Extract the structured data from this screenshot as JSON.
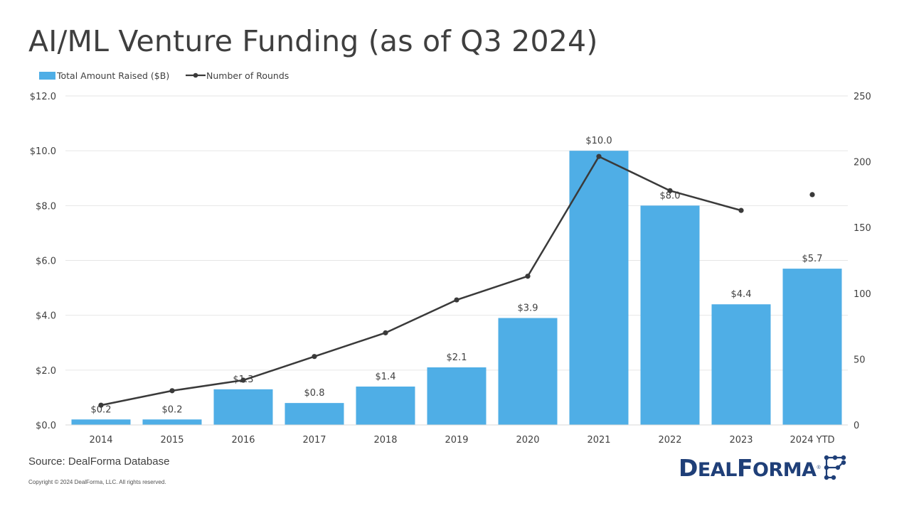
{
  "title": "AI/ML Venture Funding (as of Q3 2024)",
  "source": "Source: DealForma Database",
  "copyright": "Copyright © 2024 DealForma, LLC. All rights reserved.",
  "logo": {
    "text_first": "D",
    "text_rest": "EAL",
    "text_first2": "F",
    "text_rest2": "ORMA",
    "registered": "®"
  },
  "colors": {
    "bar": "#4faee6",
    "line": "#3a3a3a",
    "grid": "#e6e6e6",
    "logo": "#1f3f78"
  },
  "chart_data": {
    "type": "bar+line",
    "categories": [
      "2014",
      "2015",
      "2016",
      "2017",
      "2018",
      "2019",
      "2020",
      "2021",
      "2022",
      "2023",
      "2024 YTD"
    ],
    "series": [
      {
        "name": "Total Amount Raised ($B)",
        "type": "bar",
        "axis": "left",
        "values": [
          0.2,
          0.2,
          1.3,
          0.8,
          1.4,
          2.1,
          3.9,
          10.0,
          8.0,
          4.4,
          5.7
        ],
        "labels": [
          "$0.2",
          "$0.2",
          "$1.3",
          "$0.8",
          "$1.4",
          "$2.1",
          "$3.9",
          "$10.0",
          "$8.0",
          "$4.4",
          "$5.7"
        ]
      },
      {
        "name": "Number of Rounds",
        "type": "line",
        "axis": "right",
        "values": [
          15,
          26,
          34,
          52,
          70,
          95,
          113,
          204,
          178,
          163,
          175
        ],
        "connected_through_index": 9
      }
    ],
    "y_left": {
      "min": 0,
      "max": 12,
      "ticks": [
        "$0.0",
        "$2.0",
        "$4.0",
        "$6.0",
        "$8.0",
        "$10.0",
        "$12.0"
      ]
    },
    "y_right": {
      "min": 0,
      "max": 250,
      "ticks": [
        "0",
        "50",
        "100",
        "150",
        "200",
        "250"
      ]
    },
    "legend": {
      "position": "top-left",
      "items": [
        "Total Amount Raised ($B)",
        "Number of Rounds"
      ]
    },
    "grid": true
  }
}
